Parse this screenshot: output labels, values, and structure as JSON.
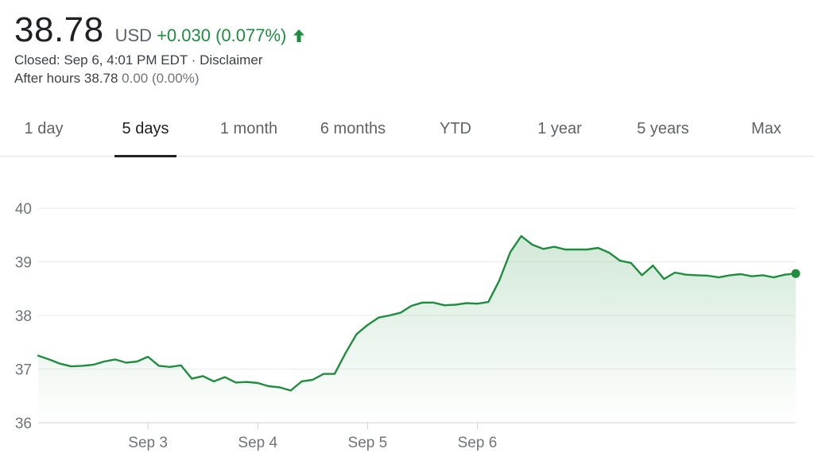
{
  "quote": {
    "price": "38.78",
    "currency": "USD",
    "change": "+0.030 (0.077%)",
    "arrow_icon": "up-arrow-icon",
    "closed_prefix": "Closed: ",
    "closed_time": "Sep 6, 4:01 PM EDT",
    "separator": " · ",
    "disclaimer": "Disclaimer",
    "after_hours_label": "After hours ",
    "after_hours_price": "38.78",
    "after_hours_change": " 0.00 (0.00%)"
  },
  "tabs": [
    {
      "label": "1 day",
      "active": false
    },
    {
      "label": "5 days",
      "active": true
    },
    {
      "label": "1 month",
      "active": false
    },
    {
      "label": "6 months",
      "active": false
    },
    {
      "label": "YTD",
      "active": false
    },
    {
      "label": "1 year",
      "active": false
    },
    {
      "label": "5 years",
      "active": false
    },
    {
      "label": "Max",
      "active": false
    }
  ],
  "colors": {
    "line": "#1e8e3e",
    "positive_text": "#1e8e3e",
    "gridline": "#ebebeb",
    "axis_text": "#70757a"
  },
  "chart_data": {
    "type": "area",
    "title": "",
    "xlabel": "",
    "ylabel": "",
    "ylim": [
      36,
      40
    ],
    "y_ticks": [
      "40",
      "39",
      "38",
      "37",
      "36"
    ],
    "y_tick_values": [
      40,
      39,
      38,
      37,
      36
    ],
    "x_ticks": [
      "Sep 3",
      "Sep 4",
      "Sep 5",
      "Sep 6"
    ],
    "x_tick_index": [
      10,
      20,
      30,
      40
    ],
    "grid": true,
    "legend": "none",
    "last_point_marker": true,
    "series": [
      {
        "values": [
          37.25,
          37.18,
          37.1,
          37.05,
          37.06,
          37.08,
          37.14,
          37.18,
          37.12,
          37.14,
          37.23,
          37.06,
          37.04,
          37.07,
          36.82,
          36.87,
          36.77,
          36.85,
          36.75,
          36.76,
          36.74,
          36.68,
          36.66,
          36.6,
          36.77,
          36.8,
          36.91,
          36.91,
          37.3,
          37.65,
          37.82,
          37.96,
          38.0,
          38.05,
          38.18,
          38.24,
          38.24,
          38.19,
          38.2,
          38.23,
          38.22,
          38.25,
          38.65,
          39.18,
          39.48,
          39.32,
          39.24,
          39.28,
          39.23,
          39.23,
          39.23,
          39.26,
          39.17,
          39.02,
          38.98,
          38.75,
          38.93,
          38.68,
          38.8,
          38.76,
          38.75,
          38.74,
          38.71,
          38.75,
          38.77,
          38.73,
          38.75,
          38.71,
          38.76,
          38.78
        ]
      }
    ]
  }
}
